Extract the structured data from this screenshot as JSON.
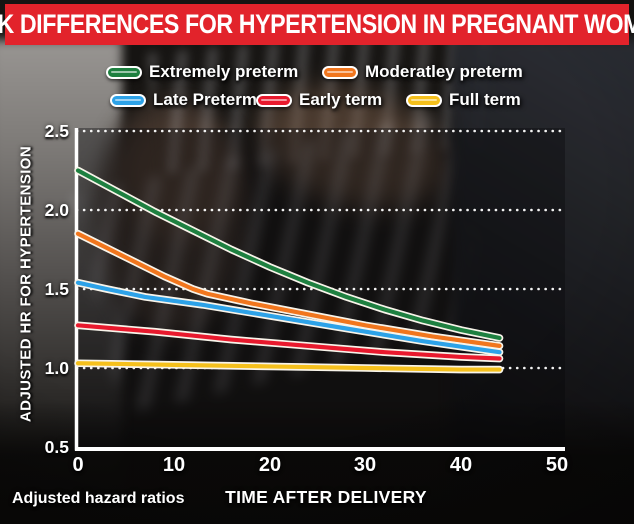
{
  "banner": {
    "title": "RISK DIFFERENCES FOR HYPERTENSION IN PREGNANT WOMEN",
    "background_color": "#e2232b"
  },
  "legend": {
    "items": [
      {
        "label": "Extremely preterm",
        "color": "#1e8040"
      },
      {
        "label": "Moderatley preterm",
        "color": "#f1761d"
      },
      {
        "label": "Late Preterm",
        "color": "#2da2e8"
      },
      {
        "label": "Early term",
        "color": "#e8192d"
      },
      {
        "label": "Full term",
        "color": "#f5c01c"
      }
    ]
  },
  "chart_data": {
    "type": "line",
    "title": "RISK DIFFERENCES FOR HYPERTENSION IN PREGNANT WOMEN",
    "xlabel": "TIME AFTER DELIVERY",
    "ylabel": "ADJUSTED HR FOR HYPERTENSION",
    "xlim": [
      0,
      50
    ],
    "ylim": [
      0.5,
      2.5
    ],
    "xtick_labels": [
      "0",
      "10",
      "20",
      "30",
      "40",
      "50"
    ],
    "ytick_labels": [
      "2.5",
      "2.0",
      "1.5",
      "1.0",
      "0.5"
    ],
    "grid": "horizontal dotted white lines",
    "gridline_values": [
      2.5,
      2.0,
      1.5,
      1.0
    ],
    "legend_position": "top",
    "line_casing_color": "#f8f4ea",
    "series": [
      {
        "name": "Extremely preterm",
        "color": "#1e8040",
        "x": [
          0,
          4,
          8,
          12,
          16,
          20,
          24,
          28,
          32,
          36,
          40,
          44
        ],
        "y": [
          2.25,
          2.12,
          1.99,
          1.87,
          1.75,
          1.64,
          1.54,
          1.45,
          1.37,
          1.3,
          1.24,
          1.19
        ]
      },
      {
        "name": "Moderatley preterm",
        "color": "#f1761d",
        "x": [
          0,
          3,
          6,
          9,
          12,
          13.5,
          18,
          24,
          30,
          37,
          44
        ],
        "y": [
          1.85,
          1.76,
          1.67,
          1.58,
          1.5,
          1.47,
          1.41,
          1.34,
          1.27,
          1.2,
          1.14
        ]
      },
      {
        "name": "Late Preterm",
        "color": "#2da2e8",
        "x": [
          0,
          3,
          7,
          13,
          20,
          28,
          36,
          44
        ],
        "y": [
          1.54,
          1.5,
          1.45,
          1.4,
          1.33,
          1.25,
          1.17,
          1.1
        ]
      },
      {
        "name": "Early term",
        "color": "#e8192d",
        "x": [
          0,
          8,
          16,
          24,
          32,
          40,
          44
        ],
        "y": [
          1.27,
          1.23,
          1.18,
          1.14,
          1.1,
          1.07,
          1.06
        ]
      },
      {
        "name": "Full term",
        "color": "#f5c01c",
        "x": [
          0,
          10,
          20,
          30,
          40,
          44
        ],
        "y": [
          1.03,
          1.02,
          1.01,
          1.0,
          0.99,
          0.99
        ]
      }
    ]
  },
  "footnote": "Adjusted hazard ratios"
}
